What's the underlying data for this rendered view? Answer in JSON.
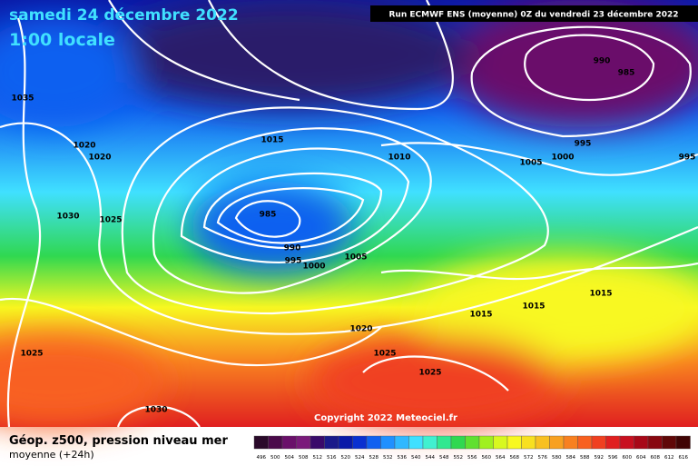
{
  "header": {
    "date": "samedi 24 décembre 2022",
    "time": "1:00 locale",
    "run": "Run ECMWF ENS (moyenne) 0Z du vendredi 23 décembre 2022"
  },
  "map": {
    "isobar_labels": [
      1035,
      1020,
      1020,
      1030,
      1025,
      1015,
      1010,
      985,
      990,
      995,
      1000,
      1005,
      1005,
      1000,
      995,
      990,
      985,
      995,
      1015,
      1015,
      1015,
      1020,
      1025,
      1025,
      1030,
      1025
    ],
    "copyright": "Copyright 2022 Meteociel.fr"
  },
  "legend": {
    "title": "Géop. z500, pression niveau mer",
    "subtitle": "moyenne  (+24h)",
    "labels": [
      496,
      500,
      504,
      508,
      512,
      516,
      520,
      524,
      528,
      532,
      536,
      540,
      544,
      548,
      552,
      556,
      560,
      564,
      568,
      572,
      576,
      580,
      584,
      588,
      592,
      596,
      600,
      604,
      608,
      612,
      616
    ],
    "colors": [
      "#2a0a2a",
      "#4a0a4a",
      "#6a106a",
      "#7a1a7a",
      "#3a0a6a",
      "#1a1a8a",
      "#0a1aa8",
      "#0a30d0",
      "#1060f0",
      "#2090ff",
      "#30b8ff",
      "#40e0ff",
      "#40f0d0",
      "#30e890",
      "#30d850",
      "#60e030",
      "#a0f020",
      "#d8f820",
      "#f8f820",
      "#f8e020",
      "#f8c020",
      "#f8a020",
      "#f88020",
      "#f86020",
      "#f04020",
      "#e02020",
      "#c81020",
      "#a80818",
      "#880810",
      "#600808",
      "#400404"
    ]
  }
}
